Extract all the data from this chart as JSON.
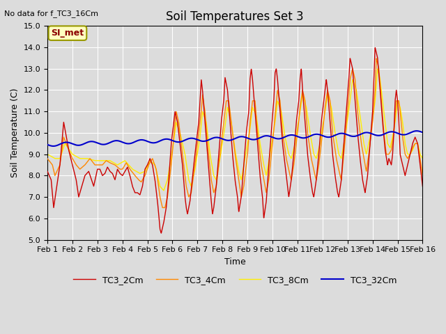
{
  "title": "Soil Temperatures Set 3",
  "subtitle": "No data for f_TC3_16Cm",
  "xlabel": "Time",
  "ylabel": "Soil Temperature (C)",
  "ylim": [
    5.0,
    15.0
  ],
  "yticks": [
    5.0,
    6.0,
    7.0,
    8.0,
    9.0,
    10.0,
    11.0,
    12.0,
    13.0,
    14.0,
    15.0
  ],
  "xlim": [
    0,
    15
  ],
  "xtick_labels": [
    "Feb 1",
    "Feb 2",
    "Feb 3",
    "Feb 4",
    "Feb 5",
    "Feb 6",
    "Feb 7",
    "Feb 8",
    "Feb 9",
    "Feb 10",
    "Feb 11",
    "Feb 12",
    "Feb 13",
    "Feb 14",
    "Feb 15",
    "Feb 16"
  ],
  "xtick_positions": [
    0,
    1,
    2,
    3,
    4,
    5,
    6,
    7,
    8,
    9,
    10,
    11,
    12,
    13,
    14,
    15
  ],
  "bg_color": "#dcdcdc",
  "grid_color": "#ffffff",
  "color_2cm": "#cc0000",
  "color_4cm": "#ff8800",
  "color_8cm": "#ffee00",
  "color_32cm": "#0000cc",
  "legend_ncol": 4,
  "annotation_text": "SI_met",
  "title_fontsize": 12,
  "label_fontsize": 9,
  "tick_fontsize": 8
}
